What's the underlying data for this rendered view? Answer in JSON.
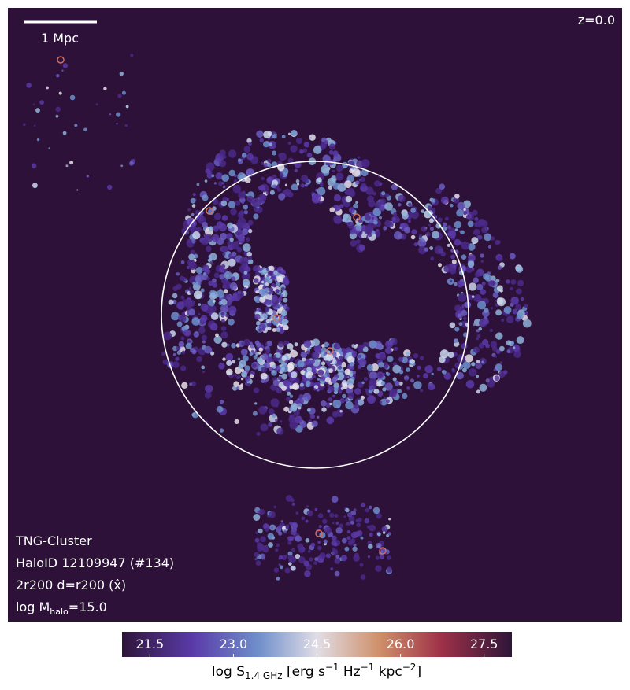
{
  "scale_bar": {
    "label": "1 Mpc"
  },
  "redshift": "z=0.0",
  "info": {
    "lines": [
      "TNG-Cluster",
      "HaloID 12109947 (#134)",
      "2r200 d=r200 (x̂)"
    ],
    "mass": {
      "prefix": "log M",
      "sub": "halo",
      "suffix": "=15.0"
    }
  },
  "colorbar": {
    "clim": [
      21,
      28
    ],
    "ticks": [
      21.5,
      {
        "value": 23,
        "label": "23.0"
      },
      24.5,
      {
        "value": 26,
        "label": "26.0"
      },
      27.5
    ],
    "label_parts": [
      "log S",
      "1.4 GHz",
      " [erg s",
      "−1",
      " Hz",
      "−1",
      " kpc",
      "−2",
      "]"
    ]
  }
}
